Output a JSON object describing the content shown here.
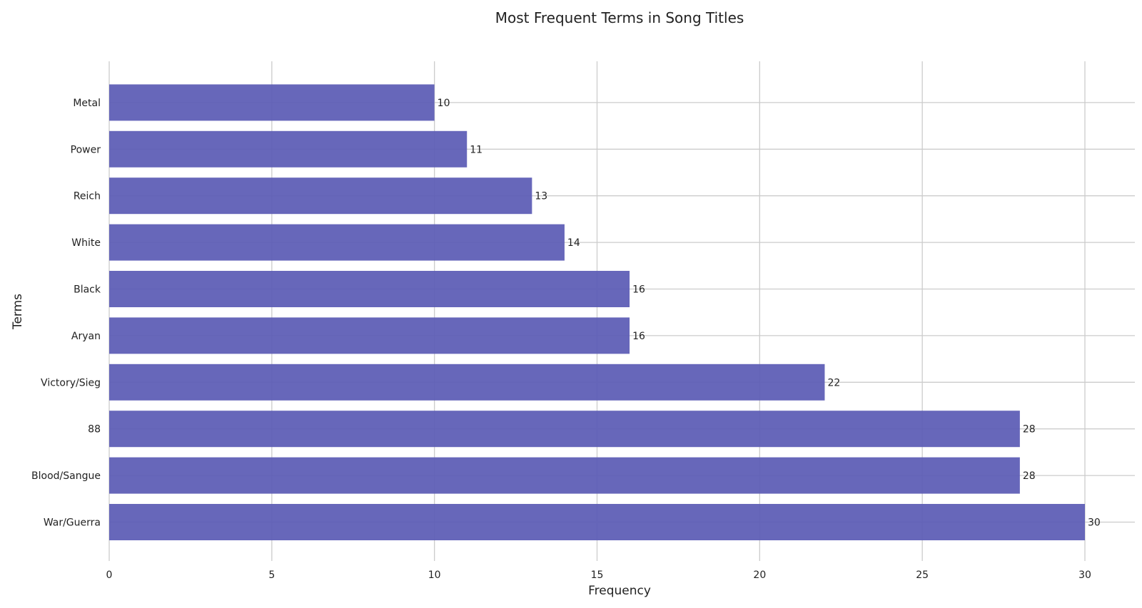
{
  "chart_data": {
    "type": "bar",
    "orientation": "horizontal",
    "title": "Most Frequent Terms in Song Titles",
    "xlabel": "Frequency",
    "ylabel": "Terms",
    "categories": [
      "War/Guerra",
      "Blood/Sangue",
      "88",
      "Victory/Sieg",
      "Aryan",
      "Black",
      "White",
      "Reich",
      "Power",
      "Metal"
    ],
    "values": [
      30,
      28,
      28,
      22,
      16,
      16,
      14,
      13,
      11,
      10
    ],
    "xlim": [
      0,
      31.5
    ],
    "xticks": [
      0,
      5,
      10,
      15,
      20,
      25,
      30
    ],
    "grid": true,
    "bar_color": "#5b5bb5",
    "data_labels": true
  }
}
